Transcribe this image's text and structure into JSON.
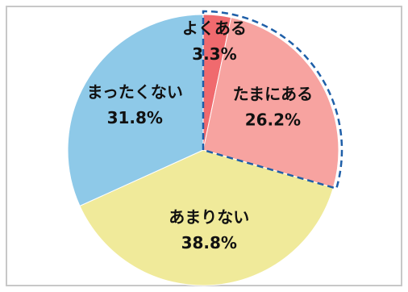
{
  "chart_data": {
    "type": "pie",
    "categories": [
      "よくある",
      "たまにある",
      "あまりない",
      "まったくない"
    ],
    "values": [
      3.3,
      26.2,
      38.8,
      31.8
    ],
    "value_labels": [
      "3.3%",
      "26.2%",
      "38.8%",
      "31.8%"
    ],
    "colors": [
      "#f06a6e",
      "#f7a3a0",
      "#f0ea9a",
      "#8ec9e8"
    ]
  }
}
